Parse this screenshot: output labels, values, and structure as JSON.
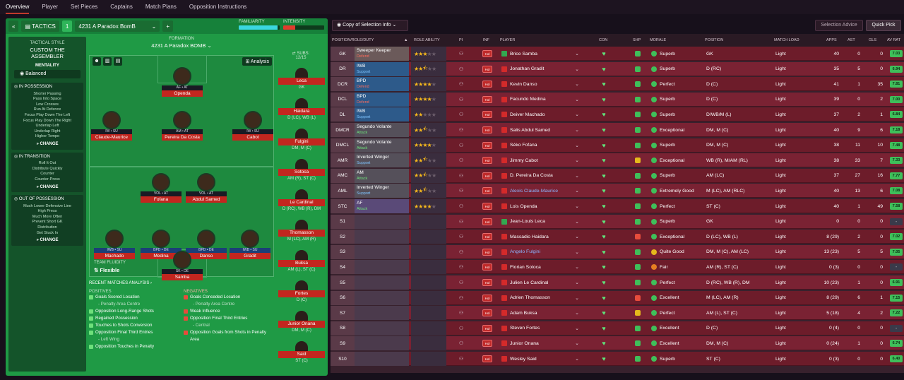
{
  "nav": [
    "Overview",
    "Player",
    "Set Pieces",
    "Captains",
    "Match Plans",
    "Opposition Instructions"
  ],
  "tactics": {
    "label": "TACTICS",
    "slot": "1",
    "name": "4231 A Paradox BomB",
    "familiarity_label": "FAMILIARITY",
    "intensity_label": "INTENSITY",
    "familiarity": 0.95,
    "intensity": 0.3
  },
  "style": {
    "title": "TACTICAL STYLE",
    "name": "CUSTOM THE ASSEMBLER",
    "mentality_label": "MENTALITY",
    "mentality": "Balanced",
    "in_possession": {
      "title": "IN POSSESSION",
      "items": [
        "Shorter Passing",
        "Pass Into Space",
        "Low Crosses",
        "Run At Defence",
        "Focus Play Down The Left",
        "Focus Play Down The Right",
        "Underlap Left",
        "Underlap Right",
        "Higher Tempo"
      ]
    },
    "in_transition": {
      "title": "IN TRANSITION",
      "items": [
        "Roll It Out",
        "Distribute Quickly",
        "Counter",
        "Counter-Press"
      ]
    },
    "out_of_possession": {
      "title": "OUT OF POSSESSION",
      "items": [
        "Much Lower Defensive Line",
        "High Press",
        "Much More Often",
        "Prevent Short GK",
        "Distribution",
        "Get Stuck In"
      ]
    },
    "change": "CHANGE"
  },
  "formation": {
    "label": "FORMATION",
    "name": "4231 A Paradox BOMB",
    "analysis": "Analysis",
    "team_fluidity_label": "TEAM FLUIDITY",
    "team_fluidity": "Flexible",
    "players": [
      {
        "role": "AF • AT",
        "name": "Openda"
      },
      {
        "role": "IW • SU",
        "name": "Claude-Maurice"
      },
      {
        "role": "AM • AT",
        "name": "Pereira Da Costa"
      },
      {
        "role": "IW • SU",
        "name": "Cabot"
      },
      {
        "role": "VOL • AT",
        "name": "Fofana"
      },
      {
        "role": "VOL • AT",
        "name": "Abdul Samed"
      },
      {
        "role": "IWB • SU",
        "name": "Machado"
      },
      {
        "role": "BPD • DE",
        "name": "Medina"
      },
      {
        "role": "BPD • DE",
        "name": "Danso"
      },
      {
        "role": "IWB • SU",
        "name": "Gradit"
      },
      {
        "role": "SK • DE",
        "name": "Samba"
      }
    ]
  },
  "subs": {
    "label": "SUBS:",
    "count": "12/15",
    "list": [
      {
        "name": "Leca",
        "pos": "GK"
      },
      {
        "name": "Haidara",
        "pos": "D (LC), WB (L)"
      },
      {
        "name": "Fulgini",
        "pos": "DM, M (C)"
      },
      {
        "name": "Sotoca",
        "pos": "AM (R), ST (C)"
      },
      {
        "name": "Le Cardinal",
        "pos": "D (RC), WB (R), DM"
      },
      {
        "name": "Thomasson",
        "pos": "M (LC), AM (R)"
      },
      {
        "name": "Buksa",
        "pos": "AM (L), ST (C)"
      },
      {
        "name": "Fortes",
        "pos": "D (C)"
      },
      {
        "name": "Junior Onana",
        "pos": "DM, M (C)"
      },
      {
        "name": "Said",
        "pos": "ST (C)"
      }
    ]
  },
  "recent": {
    "title": "RECENT MATCHES ANALYSIS",
    "positives_label": "POSITIVES",
    "negatives_label": "NEGATIVES",
    "positives": [
      {
        "t": "Goals Scored Location",
        "s": "- Penalty Area Centre"
      },
      {
        "t": "Opposition Long-Range Shots",
        "s": ""
      },
      {
        "t": "Regained Possession",
        "s": ""
      },
      {
        "t": "Touches to Shots Conversion",
        "s": ""
      },
      {
        "t": "Opposition Final Third Entries",
        "s": "- Left Wing"
      },
      {
        "t": "Opposition Touches in Penalty",
        "s": ""
      }
    ],
    "negatives": [
      {
        "t": "Goals Conceded Location",
        "s": "- Penalty Area Centre"
      },
      {
        "t": "Weak Influence",
        "s": ""
      },
      {
        "t": "Opposition Final Third Entries",
        "s": "- Central"
      },
      {
        "t": "Opposition Goals from Shots in Penalty Area",
        "s": ""
      }
    ]
  },
  "toolbar": {
    "copy": "Copy of Selection Info",
    "advice": "Selection Advice",
    "quick": "Quick Pick"
  },
  "table": {
    "headers": {
      "pos": "POSITION/ROLE/DUTY",
      "ra": "ROLE ABILITY",
      "pi": "PI",
      "inf": "INF",
      "player": "PLAYER",
      "con": "CON",
      "shp": "SHP",
      "morale": "MORALE",
      "position": "POSITION",
      "ml": "MATCH LOAD",
      "apps": "APPS",
      "ast": "AST",
      "gls": "GLS",
      "av": "AV RAT"
    },
    "inf_label": "Hol",
    "rows": [
      {
        "pos": "GK",
        "role": "Sweeper Keeper",
        "duty": "Defend",
        "dc": "d",
        "rc": "gk",
        "stars": 3,
        "player": "Brice Samba",
        "gk": true,
        "shp": "g",
        "morale": "Superb",
        "mc": "g",
        "position": "GK",
        "load": "Light",
        "apps": "40",
        "ast": "0",
        "gls": "0",
        "av": "7.03"
      },
      {
        "pos": "DR",
        "role": "IWB",
        "duty": "Support",
        "dc": "s",
        "rc": "def",
        "stars": 2.5,
        "player": "Jonathan Gradit",
        "shp": "g",
        "morale": "Superb",
        "mc": "g",
        "position": "D (RC)",
        "load": "Light",
        "apps": "35",
        "ast": "5",
        "gls": "0",
        "av": "6.94"
      },
      {
        "pos": "DCR",
        "role": "BPD",
        "duty": "Defend",
        "dc": "d",
        "rc": "def",
        "stars": 4,
        "player": "Kevin Danso",
        "shp": "g",
        "morale": "Perfect",
        "mc": "g",
        "position": "D (C)",
        "load": "Light",
        "apps": "41",
        "ast": "1",
        "gls": "35",
        "av": "7.81"
      },
      {
        "pos": "DCL",
        "role": "BPD",
        "duty": "Defend",
        "dc": "d",
        "rc": "def",
        "stars": 4,
        "player": "Facundo Medina",
        "shp": "g",
        "morale": "Superb",
        "mc": "g",
        "position": "D (C)",
        "load": "Light",
        "apps": "39",
        "ast": "0",
        "gls": "2",
        "av": "7.00"
      },
      {
        "pos": "DL",
        "role": "IWB",
        "duty": "Support",
        "dc": "s",
        "rc": "def",
        "stars": 2,
        "player": "Deiver Machado",
        "shp": "g",
        "morale": "Superb",
        "mc": "g",
        "position": "D/WB/M (L)",
        "load": "Light",
        "apps": "37",
        "ast": "2",
        "gls": "1",
        "av": "6.84"
      },
      {
        "pos": "DMCR",
        "role": "Segundo Volante",
        "duty": "Attack",
        "dc": "a",
        "rc": "mid",
        "stars": 2.5,
        "player": "Salis Abdul Samed",
        "shp": "g",
        "morale": "Exceptional",
        "mc": "g",
        "position": "DM, M (C)",
        "load": "Light",
        "apps": "40",
        "ast": "9",
        "gls": "6",
        "av": "7.18"
      },
      {
        "pos": "DMCL",
        "role": "Segundo Volante",
        "duty": "Attack",
        "dc": "a",
        "rc": "mid",
        "stars": 4,
        "player": "Séko Fofana",
        "shp": "g",
        "morale": "Superb",
        "mc": "g",
        "position": "DM, M (C)",
        "load": "Light",
        "apps": "38",
        "ast": "11",
        "gls": "10",
        "av": "7.48"
      },
      {
        "pos": "AMR",
        "role": "Inverted Winger",
        "duty": "Support",
        "dc": "s",
        "rc": "mid",
        "stars": 2.5,
        "player": "Jimmy Cabot",
        "shp": "y",
        "morale": "Exceptional",
        "mc": "g",
        "position": "WB (R), M/AM (RL)",
        "load": "Light",
        "apps": "38",
        "ast": "33",
        "gls": "7",
        "av": "7.33"
      },
      {
        "pos": "AMC",
        "role": "AM",
        "duty": "Attack",
        "dc": "a",
        "rc": "mid",
        "stars": 2.5,
        "player": "D. Pereira Da Costa",
        "shp": "g",
        "morale": "Superb",
        "mc": "g",
        "position": "AM (LC)",
        "load": "Light",
        "apps": "37",
        "ast": "27",
        "gls": "16",
        "av": "7.77"
      },
      {
        "pos": "AML",
        "role": "Inverted Winger",
        "duty": "Support",
        "dc": "s",
        "rc": "mid",
        "stars": 2.5,
        "player": "Alexis Claude-Maurice",
        "blue": true,
        "shp": "g",
        "morale": "Extremely Good",
        "mc": "g",
        "position": "M (LC), AM (RLC)",
        "load": "Light",
        "apps": "40",
        "ast": "13",
        "gls": "6",
        "av": "7.08"
      },
      {
        "pos": "STC",
        "role": "AF",
        "duty": "Attack",
        "dc": "a",
        "rc": "att",
        "stars": 4,
        "player": "Lois Openda",
        "shp": "g",
        "morale": "Perfect",
        "mc": "g",
        "position": "ST (C)",
        "load": "Light",
        "apps": "40",
        "ast": "1",
        "gls": "49",
        "av": "7.58"
      },
      {
        "pos": "S1",
        "role": "",
        "duty": "",
        "rc": "sub",
        "stars": 0,
        "player": "Jean-Louis Leca",
        "gk": true,
        "shp": "g",
        "morale": "Superb",
        "mc": "g",
        "position": "GK",
        "load": "Light",
        "apps": "0",
        "ast": "0",
        "gls": "0",
        "av": "-"
      },
      {
        "pos": "S2",
        "role": "",
        "duty": "",
        "rc": "sub",
        "stars": 0,
        "player": "Massadio Haidara",
        "shp": "r",
        "morale": "Exceptional",
        "mc": "g",
        "position": "D (LC), WB (L)",
        "load": "Light",
        "apps": "8 (29)",
        "ast": "2",
        "gls": "0",
        "av": "7.02"
      },
      {
        "pos": "S3",
        "role": "",
        "duty": "",
        "rc": "sub",
        "stars": 0,
        "player": "Angelo Fulgini",
        "blue": true,
        "shp": "g",
        "morale": "Quite Good",
        "mc": "y",
        "position": "DM, M (C), AM (LC)",
        "load": "Light",
        "apps": "13 (23)",
        "ast": "5",
        "gls": "5",
        "av": "7.05"
      },
      {
        "pos": "S4",
        "role": "",
        "duty": "",
        "rc": "sub",
        "stars": 0,
        "player": "Florian Sotoca",
        "shp": "g",
        "morale": "Fair",
        "mc": "o",
        "position": "AM (R), ST (C)",
        "load": "Light",
        "apps": "0 (3)",
        "ast": "0",
        "gls": "0",
        "av": "-"
      },
      {
        "pos": "S5",
        "role": "",
        "duty": "",
        "rc": "sub",
        "stars": 0,
        "player": "Julien Le Cardinal",
        "shp": "g",
        "morale": "Perfect",
        "mc": "g",
        "position": "D (RC), WB (R), DM",
        "load": "Light",
        "apps": "10 (23)",
        "ast": "1",
        "gls": "0",
        "av": "6.91"
      },
      {
        "pos": "S6",
        "role": "",
        "duty": "",
        "rc": "sub",
        "stars": 0,
        "player": "Adrien Thomasson",
        "shp": "r",
        "morale": "Excellent",
        "mc": "g",
        "position": "M (LC), AM (R)",
        "load": "Light",
        "apps": "8 (29)",
        "ast": "6",
        "gls": "1",
        "av": "7.15"
      },
      {
        "pos": "S7",
        "role": "",
        "duty": "",
        "rc": "sub",
        "stars": 0,
        "player": "Adam Buksa",
        "shp": "y",
        "morale": "Perfect",
        "mc": "g",
        "position": "AM (L), ST (C)",
        "load": "Light",
        "apps": "5 (18)",
        "ast": "4",
        "gls": "2",
        "av": "7.22"
      },
      {
        "pos": "S8",
        "role": "",
        "duty": "",
        "rc": "sub",
        "stars": 0,
        "player": "Steven Fortes",
        "shp": "g",
        "morale": "Excellent",
        "mc": "g",
        "position": "D (C)",
        "load": "Light",
        "apps": "0 (4)",
        "ast": "0",
        "gls": "0",
        "av": "-"
      },
      {
        "pos": "S9",
        "role": "",
        "duty": "",
        "rc": "sub",
        "stars": 0,
        "player": "Junior Onana",
        "shp": "g",
        "morale": "Excellent",
        "mc": "g",
        "position": "DM, M (C)",
        "load": "Light",
        "apps": "0 (24)",
        "ast": "1",
        "gls": "0",
        "av": "6.74"
      },
      {
        "pos": "S10",
        "role": "",
        "duty": "",
        "rc": "sub",
        "stars": 0,
        "player": "Wesley Said",
        "shp": "g",
        "morale": "Superb",
        "mc": "g",
        "position": "ST (C)",
        "load": "Light",
        "apps": "0 (3)",
        "ast": "0",
        "gls": "0",
        "av": "6.40"
      }
    ]
  }
}
